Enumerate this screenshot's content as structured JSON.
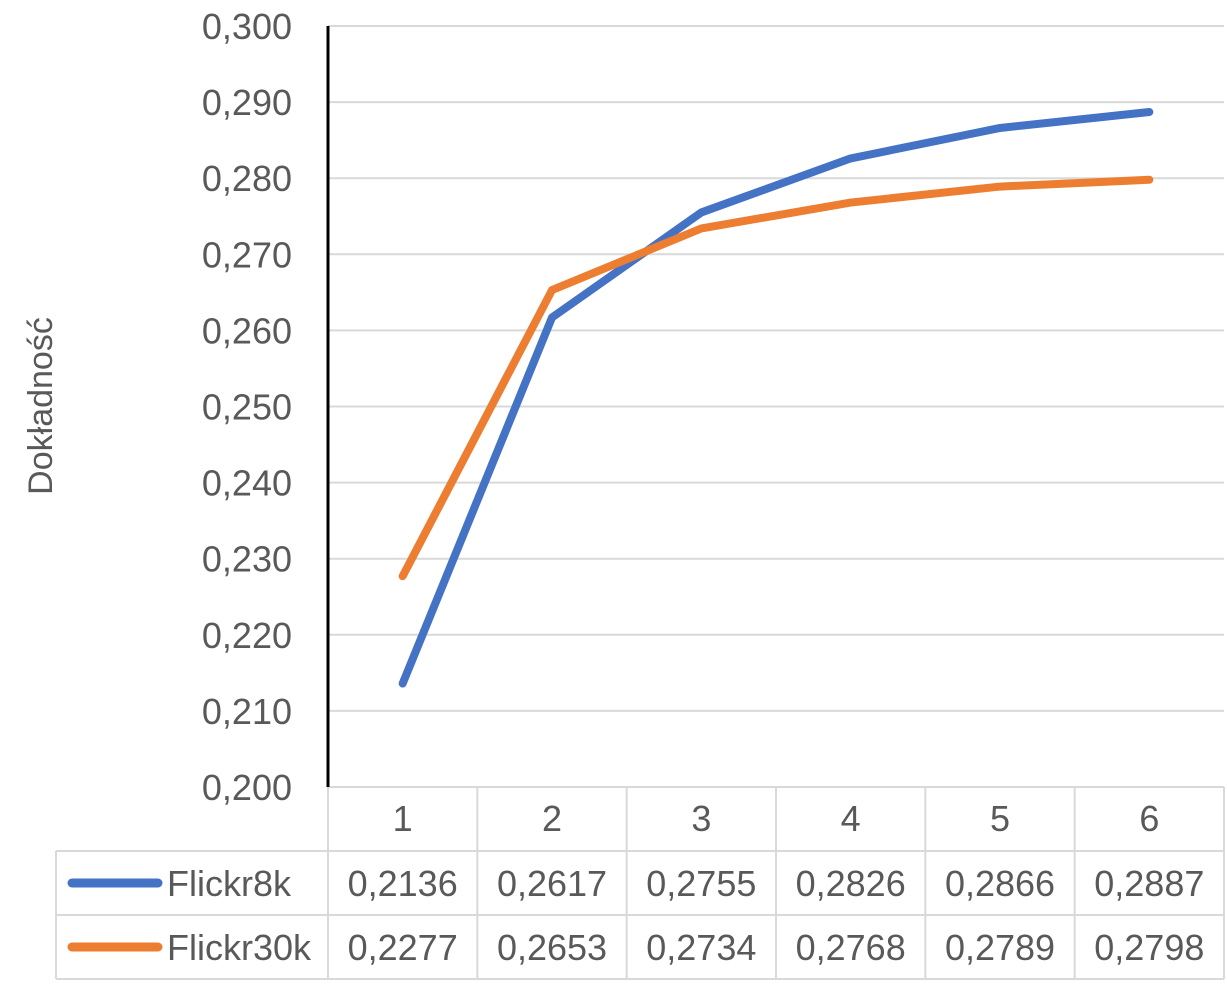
{
  "chart_data": {
    "type": "line",
    "title": "",
    "ylabel": "Dokładność",
    "xlabel": "",
    "categories": [
      "1",
      "2",
      "3",
      "4",
      "5",
      "6"
    ],
    "ylim": [
      0.2,
      0.3
    ],
    "yticks": [
      "0,200",
      "0,210",
      "0,220",
      "0,230",
      "0,240",
      "0,250",
      "0,260",
      "0,270",
      "0,280",
      "0,290",
      "0,300"
    ],
    "grid": true,
    "legend": "data-table",
    "series": [
      {
        "name": "Flickr8k",
        "color": "#4472C4",
        "values": [
          0.2136,
          0.2617,
          0.2755,
          0.2826,
          0.2866,
          0.2887
        ],
        "labels": [
          "0,2136",
          "0,2617",
          "0,2755",
          "0,2826",
          "0,2866",
          "0,2887"
        ]
      },
      {
        "name": "Flickr30k",
        "color": "#ED7D31",
        "values": [
          0.2277,
          0.2653,
          0.2734,
          0.2768,
          0.2789,
          0.2798
        ],
        "labels": [
          "0,2277",
          "0,2653",
          "0,2734",
          "0,2768",
          "0,2789",
          "0,2798"
        ]
      }
    ]
  }
}
